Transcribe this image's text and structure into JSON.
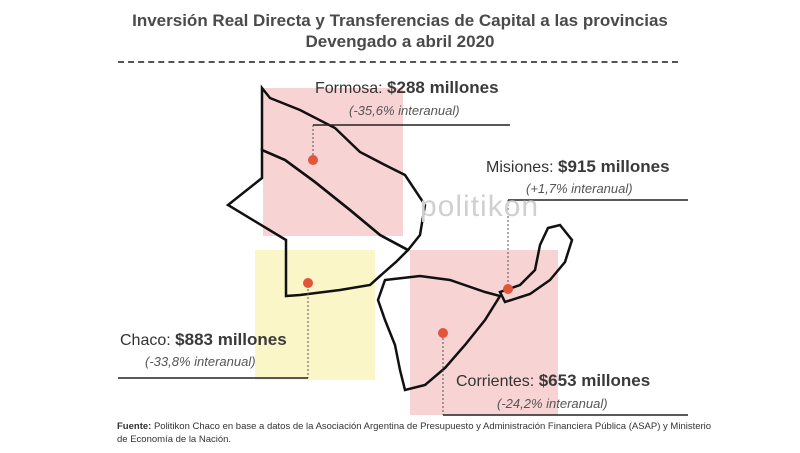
{
  "title": {
    "line1": "Inversión Real Directa y Transferencias de Capital a las provincias",
    "line2": "Devengado a abril 2020"
  },
  "watermark": "politikon",
  "provinces": [
    {
      "id": "formosa",
      "name": "Formosa:",
      "amount": "$288 millones",
      "change": "(-35,6% interanual)",
      "color": "#f8d3d3"
    },
    {
      "id": "misiones",
      "name": "Misiones:",
      "amount": "$915 millones",
      "change": "(+1,7% interanual)",
      "color": "#f8d3d3"
    },
    {
      "id": "chaco",
      "name": "Chaco:",
      "amount": "$883 millones",
      "change": "(-33,8% interanual)",
      "color": "#fbf6c8"
    },
    {
      "id": "corrientes",
      "name": "Corrientes:",
      "amount": "$653 millones",
      "change": "(-24,2% interanual)",
      "color": "#f8d3d3"
    }
  ],
  "marker_color": "#e2553a",
  "footer": {
    "label": "Fuente:",
    "text": "Politikon Chaco en base a datos de la Asociación Argentina de Presupuesto y Administración Financiera Pública (ASAP) y Ministerio de Economía de la Nación."
  }
}
